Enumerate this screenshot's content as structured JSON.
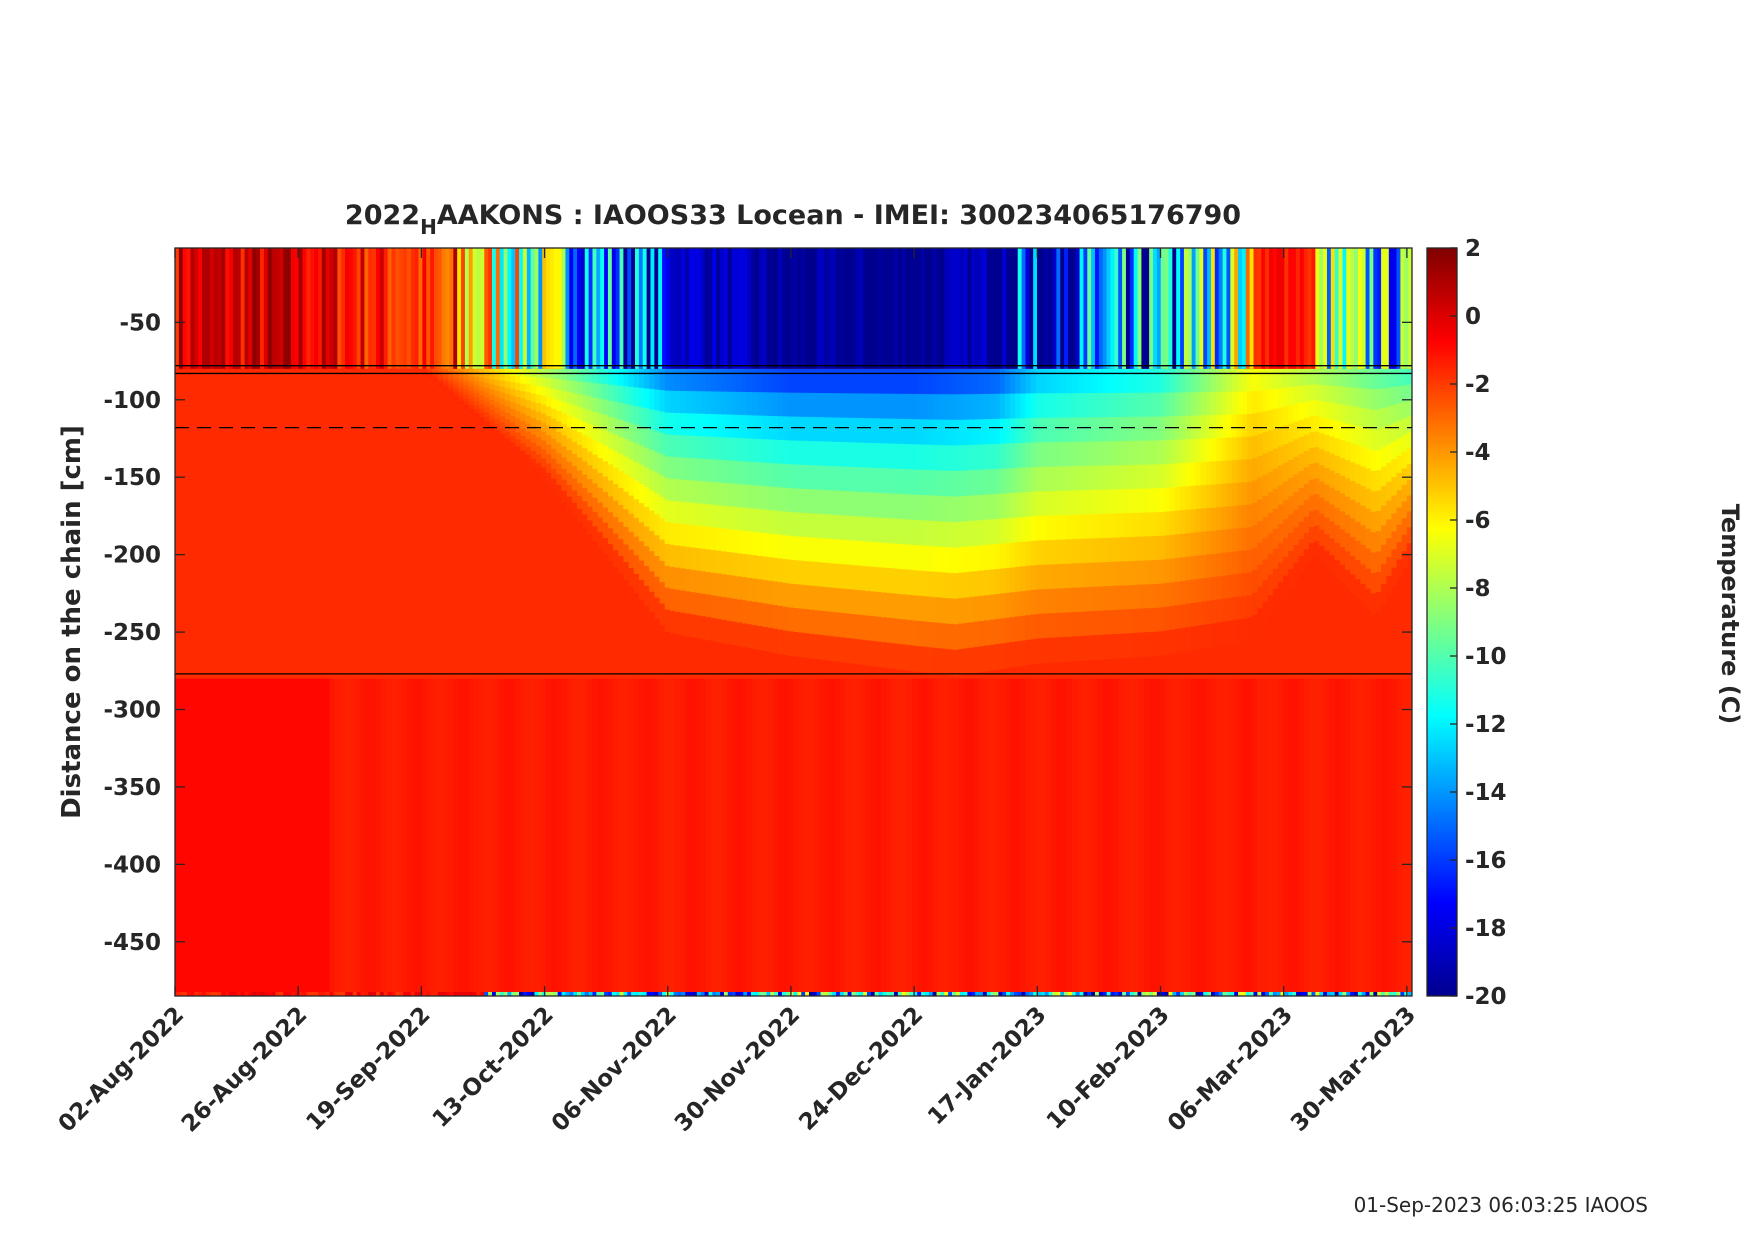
{
  "chart_data": {
    "type": "heatmap",
    "title_parts": {
      "prefix": "2022",
      "subscript": "H",
      "suffix": "AAKONS : IAOOS33  Locean - IMEI: 300234065176790"
    },
    "ylabel": "Distance on the chain [cm]",
    "ylim": [
      -485,
      -2
    ],
    "yticks": [
      -50,
      -100,
      -150,
      -200,
      -250,
      -300,
      -350,
      -400,
      -450
    ],
    "ytick_labels": [
      "-50",
      "-100",
      "-150",
      "-200",
      "-250",
      "-300",
      "-350",
      "-400",
      "-450"
    ],
    "x_start_day": 0,
    "x_end_day": 241,
    "xticks_days": [
      0,
      24,
      48,
      72,
      96,
      120,
      144,
      168,
      192,
      216,
      240
    ],
    "xtick_labels": [
      "02-Aug-2022",
      "26-Aug-2022",
      "19-Sep-2022",
      "13-Oct-2022",
      "06-Nov-2022",
      "30-Nov-2022",
      "24-Dec-2022",
      "17-Jan-2023",
      "10-Feb-2023",
      "06-Mar-2023",
      "30-Mar-2023"
    ],
    "colorbar": {
      "label": "Temperature (C)",
      "clim": [
        -20,
        2
      ],
      "ticks": [
        2,
        0,
        -2,
        -4,
        -6,
        -8,
        -10,
        -12,
        -14,
        -16,
        -18,
        -20
      ],
      "tick_labels": [
        "2",
        "0",
        "-2",
        "-4",
        "-6",
        "-8",
        "-10",
        "-12",
        "-14",
        "-16",
        "-18",
        "-20"
      ],
      "colormap": "jet"
    },
    "horizontal_lines": [
      {
        "y": -78,
        "style": "solid"
      },
      {
        "y": -83,
        "style": "solid"
      },
      {
        "y": -118,
        "style": "dashed"
      },
      {
        "y": -277,
        "style": "solid"
      }
    ],
    "air_temperature_profile_days": [
      0,
      24,
      48,
      60,
      72,
      84,
      96,
      120,
      144,
      160,
      168,
      192,
      210,
      222,
      234,
      241
    ],
    "air_temperature_profile_values": [
      0,
      0,
      -2,
      -6,
      -10,
      -14,
      -18,
      -20,
      -20,
      -19,
      -16,
      -14,
      -8,
      -10,
      -12,
      -13
    ],
    "ice_isotherm_depths_days": [
      0,
      48,
      72,
      96,
      120,
      144,
      152,
      168,
      192,
      210,
      222,
      234,
      241
    ],
    "ice_isotherm_depths_cm": [
      -80,
      -80,
      -150,
      -250,
      -265,
      -275,
      -278,
      -270,
      -265,
      -255,
      -200,
      -240,
      -200
    ]
  },
  "footer": {
    "timestamp": "01-Sep-2023 06:03:25 IAOOS"
  }
}
